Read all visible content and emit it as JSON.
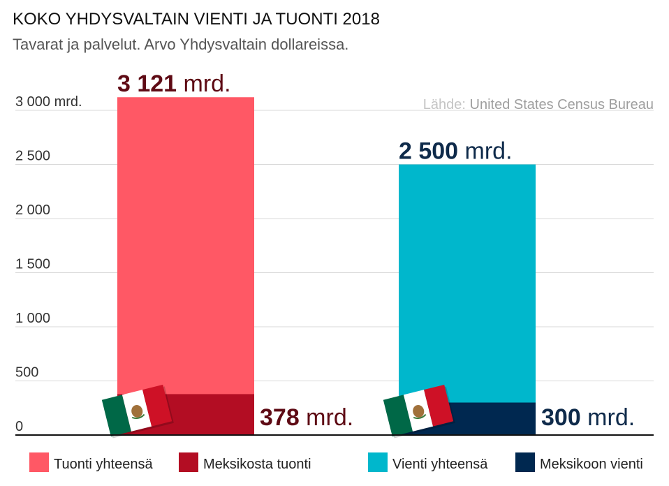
{
  "chart_data": {
    "type": "bar",
    "title": "KOKO YHDYSVALTAIN VIENTI JA TUONTI 2018",
    "subtitle": "Tavarat ja palvelut. Arvo Yhdysvaltain dollareissa.",
    "source_prefix": "Lähde: ",
    "source_name": "United States Census Bureau",
    "ylim": [
      0,
      3000
    ],
    "yticks": [
      {
        "value": 0,
        "label": "0"
      },
      {
        "value": 500,
        "label": "500"
      },
      {
        "value": 1000,
        "label": "1 000"
      },
      {
        "value": 1500,
        "label": "1 500"
      },
      {
        "value": 2000,
        "label": "2 000"
      },
      {
        "value": 2500,
        "label": "2 500"
      },
      {
        "value": 3000,
        "label": "3 000 mrd."
      }
    ],
    "grid": true,
    "unit_suffix": " mrd.",
    "groups": [
      {
        "total": {
          "series": "Tuonti yhteensä",
          "value": 3121,
          "label": "3 121"
        },
        "mexico": {
          "series": "Meksikosta tuonti",
          "value": 378,
          "label": "378"
        }
      },
      {
        "total": {
          "series": "Vienti yhteensä",
          "value": 2500,
          "label": "2 500"
        },
        "mexico": {
          "series": "Meksikoon vienti",
          "value": 300,
          "label": "300"
        }
      }
    ],
    "legend": [
      {
        "name": "Tuonti yhteensä",
        "color": "#ff5865"
      },
      {
        "name": "Meksikosta tuonti",
        "color": "#b30d23"
      },
      {
        "name": "Vienti yhteensä",
        "color": "#00b7cc"
      },
      {
        "name": "Meksikoon vienti",
        "color": "#002850"
      }
    ],
    "legend_position": "bottom",
    "colors": {
      "import_total": "#ff5865",
      "import_mexico": "#b30d23",
      "export_total": "#00b7cc",
      "export_mexico": "#002850",
      "import_label": "#5e0a14",
      "export_label": "#0e2a4a",
      "grid": "#d9d9d9",
      "axis": "#111111"
    }
  }
}
